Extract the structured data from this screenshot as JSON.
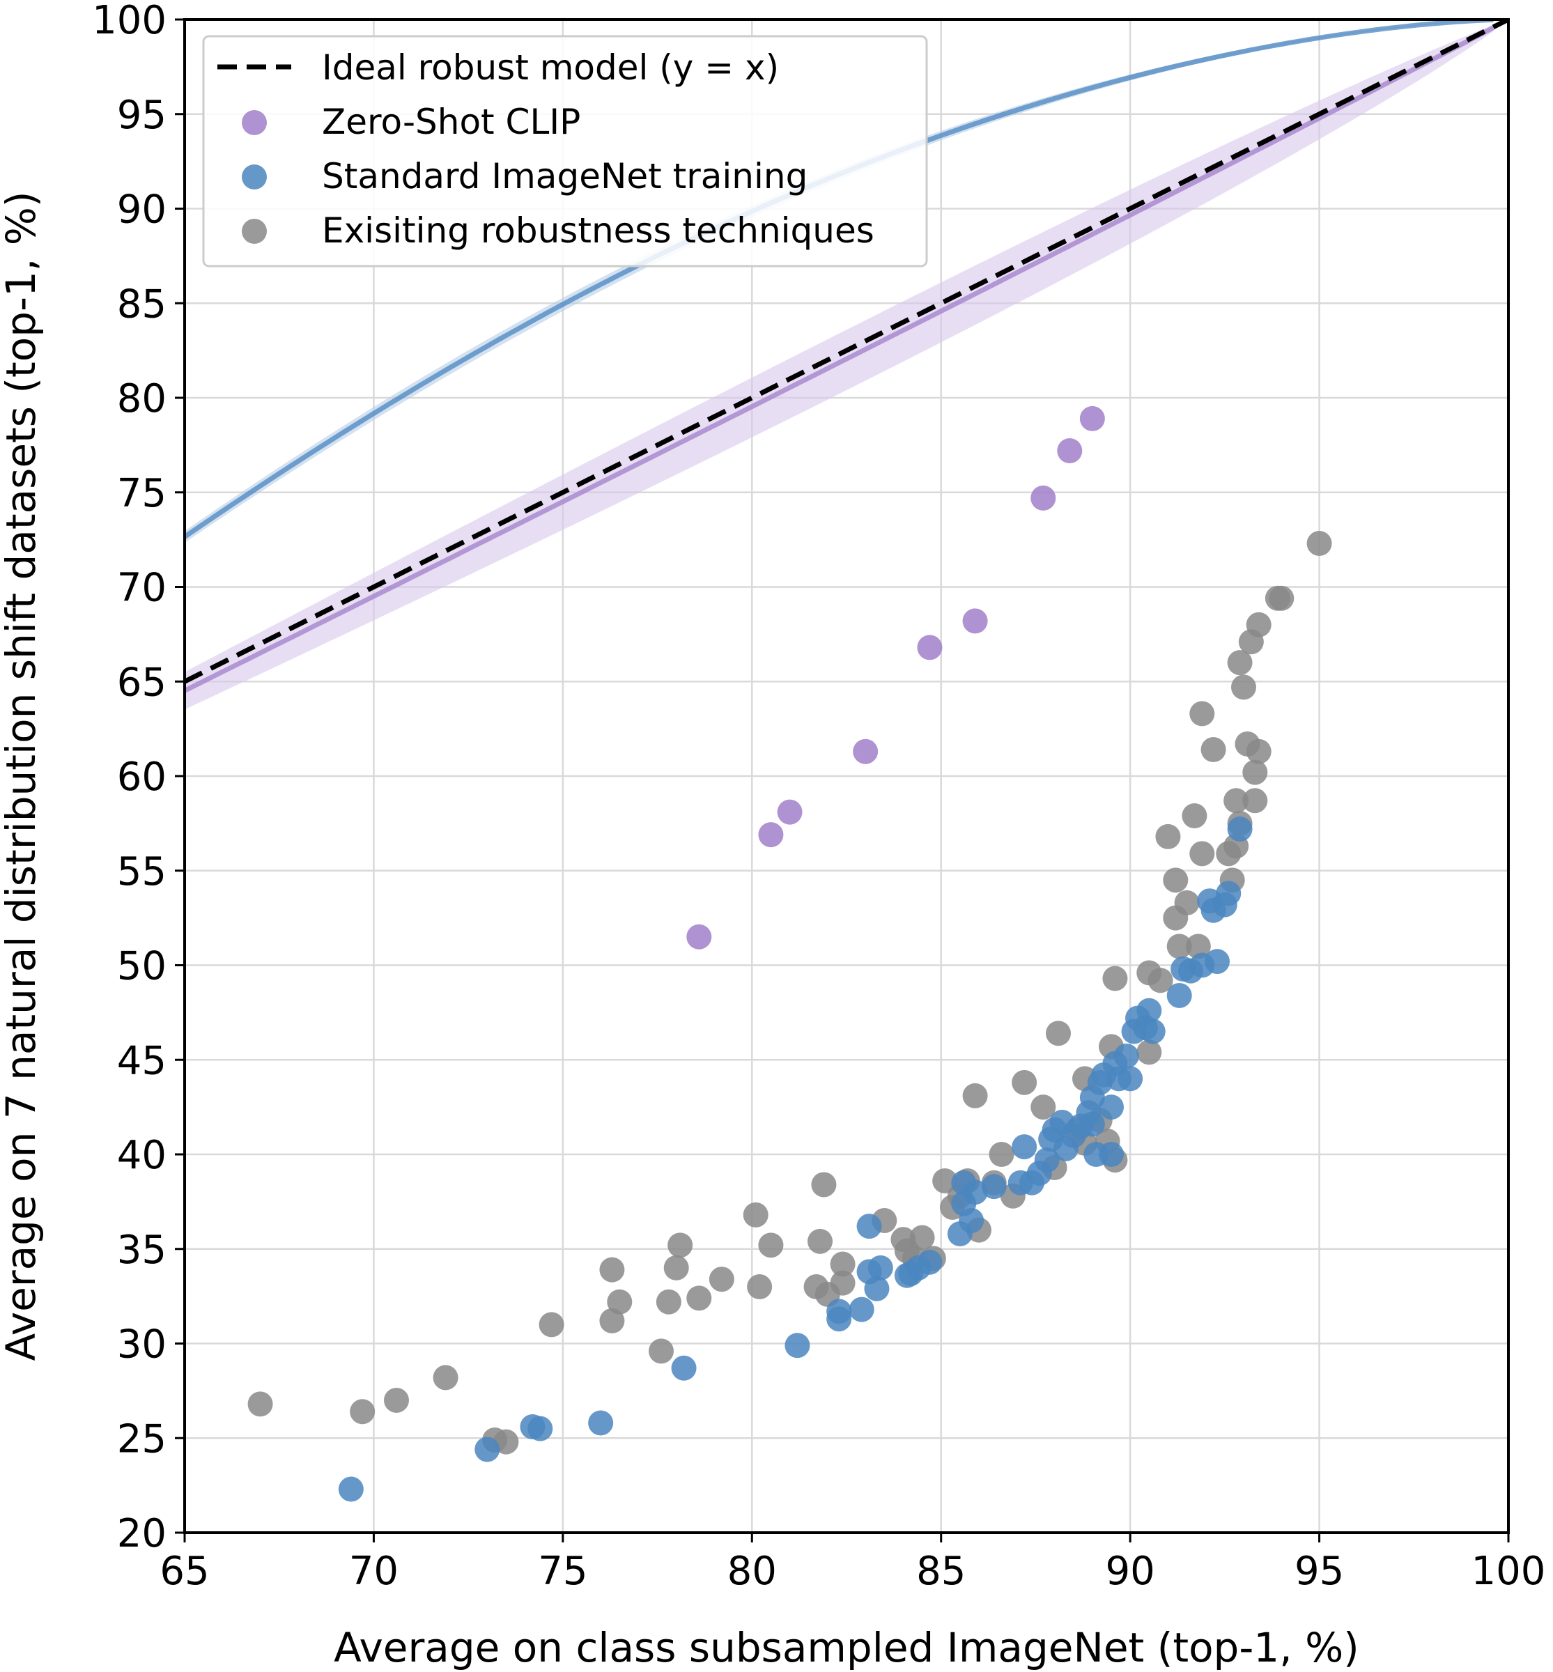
{
  "chart_data": {
    "type": "scatter",
    "xlabel": "Average on class subsampled ImageNet (top-1, %)",
    "ylabel": "Average on 7 natural distribution shift datasets (top-1, %)",
    "xlim": [
      65,
      100
    ],
    "ylim": [
      20,
      100
    ],
    "xticks": [
      "65",
      "70",
      "75",
      "80",
      "85",
      "90",
      "95",
      "100"
    ],
    "yticks": [
      "20",
      "25",
      "30",
      "35",
      "40",
      "45",
      "50",
      "55",
      "60",
      "65",
      "70",
      "75",
      "80",
      "85",
      "90",
      "95",
      "100"
    ],
    "grid": true,
    "legend_position": "upper-left",
    "colors": {
      "ideal": "#000000",
      "clip": "#a17fc9",
      "clip_band": "#d9c8ec",
      "standard": "#4a86c0",
      "standard_band": "#b5cde6",
      "robust": "#888888"
    },
    "legend": [
      {
        "label": "Ideal robust model (y = x)",
        "marker": "dashed-line",
        "color": "#000000"
      },
      {
        "label": "Zero-Shot CLIP",
        "marker": "dot",
        "color": "#a17fc9"
      },
      {
        "label": "Standard ImageNet training",
        "marker": "dot",
        "color": "#4a86c0"
      },
      {
        "label": "Exisiting robustness techniques",
        "marker": "dot",
        "color": "#888888"
      }
    ],
    "lines": [
      {
        "name": "Ideal robust model (y = x)",
        "x": [
          65,
          100
        ],
        "y": [
          65,
          100
        ],
        "style": "dashed"
      }
    ],
    "fits": [
      {
        "series": "Zero-Shot CLIP",
        "a": 0.99,
        "b": -0.015,
        "band_a": 0.07
      },
      {
        "series": "Standard ImageNet training",
        "a": 1.57,
        "b": 0.005,
        "band_a": 0.025
      }
    ],
    "series": [
      {
        "name": "Exisiting robustness techniques",
        "points": [
          [
            67.0,
            26.8
          ],
          [
            69.7,
            26.4
          ],
          [
            70.6,
            27.0
          ],
          [
            71.9,
            28.2
          ],
          [
            73.2,
            24.9
          ],
          [
            73.5,
            24.8
          ],
          [
            74.7,
            31.0
          ],
          [
            76.3,
            31.2
          ],
          [
            76.3,
            33.9
          ],
          [
            76.5,
            32.2
          ],
          [
            77.6,
            29.6
          ],
          [
            77.8,
            32.2
          ],
          [
            78.0,
            34.0
          ],
          [
            78.1,
            35.2
          ],
          [
            78.6,
            32.4
          ],
          [
            79.2,
            33.4
          ],
          [
            80.1,
            36.8
          ],
          [
            80.2,
            33.0
          ],
          [
            80.5,
            35.2
          ],
          [
            81.7,
            33.0
          ],
          [
            81.8,
            35.4
          ],
          [
            81.9,
            38.4
          ],
          [
            82.0,
            32.6
          ],
          [
            82.4,
            33.2
          ],
          [
            82.4,
            34.2
          ],
          [
            83.5,
            36.5
          ],
          [
            84.0,
            35.5
          ],
          [
            84.1,
            34.9
          ],
          [
            84.3,
            34.5
          ],
          [
            84.5,
            35.6
          ],
          [
            84.8,
            34.5
          ],
          [
            85.1,
            38.6
          ],
          [
            85.3,
            37.2
          ],
          [
            85.5,
            37.8
          ],
          [
            85.7,
            38.6
          ],
          [
            85.9,
            43.1
          ],
          [
            86.0,
            36.0
          ],
          [
            86.4,
            38.5
          ],
          [
            86.6,
            40.0
          ],
          [
            86.9,
            37.8
          ],
          [
            87.2,
            43.8
          ],
          [
            87.7,
            42.5
          ],
          [
            88.0,
            39.3
          ],
          [
            88.1,
            46.4
          ],
          [
            88.6,
            41.3
          ],
          [
            88.8,
            40.6
          ],
          [
            88.8,
            44.0
          ],
          [
            89.2,
            41.8
          ],
          [
            89.4,
            40.7
          ],
          [
            89.5,
            45.7
          ],
          [
            89.6,
            39.7
          ],
          [
            89.6,
            49.3
          ],
          [
            90.5,
            45.4
          ],
          [
            90.5,
            49.6
          ],
          [
            90.8,
            49.2
          ],
          [
            91.0,
            56.8
          ],
          [
            91.2,
            54.5
          ],
          [
            91.2,
            52.5
          ],
          [
            91.3,
            51.0
          ],
          [
            91.5,
            53.3
          ],
          [
            91.7,
            57.9
          ],
          [
            91.8,
            51.0
          ],
          [
            91.9,
            55.9
          ],
          [
            91.9,
            63.3
          ],
          [
            92.2,
            61.4
          ],
          [
            92.6,
            55.9
          ],
          [
            92.7,
            54.5
          ],
          [
            92.8,
            56.3
          ],
          [
            92.8,
            58.7
          ],
          [
            92.9,
            57.5
          ],
          [
            92.9,
            66.0
          ],
          [
            93.0,
            64.7
          ],
          [
            93.1,
            61.7
          ],
          [
            93.2,
            67.1
          ],
          [
            93.3,
            60.2
          ],
          [
            93.3,
            58.7
          ],
          [
            93.4,
            61.3
          ],
          [
            93.4,
            68.0
          ],
          [
            93.9,
            69.4
          ],
          [
            94.0,
            69.4
          ],
          [
            95.0,
            72.3
          ]
        ]
      },
      {
        "name": "Standard ImageNet training",
        "points": [
          [
            69.4,
            22.3
          ],
          [
            73.0,
            24.4
          ],
          [
            74.2,
            25.6
          ],
          [
            74.4,
            25.5
          ],
          [
            76.0,
            25.8
          ],
          [
            78.2,
            28.7
          ],
          [
            81.2,
            29.9
          ],
          [
            82.3,
            31.3
          ],
          [
            82.3,
            31.7
          ],
          [
            82.9,
            31.8
          ],
          [
            83.1,
            33.8
          ],
          [
            83.1,
            36.2
          ],
          [
            83.3,
            32.9
          ],
          [
            83.4,
            34.0
          ],
          [
            84.1,
            33.6
          ],
          [
            84.2,
            33.7
          ],
          [
            84.4,
            34.0
          ],
          [
            84.7,
            34.3
          ],
          [
            85.5,
            35.8
          ],
          [
            85.6,
            37.4
          ],
          [
            85.6,
            38.5
          ],
          [
            85.8,
            36.5
          ],
          [
            85.9,
            38.0
          ],
          [
            86.4,
            38.3
          ],
          [
            87.1,
            38.5
          ],
          [
            87.2,
            40.4
          ],
          [
            87.4,
            38.5
          ],
          [
            87.6,
            39.0
          ],
          [
            87.8,
            39.7
          ],
          [
            87.9,
            40.8
          ],
          [
            88.0,
            41.3
          ],
          [
            88.2,
            41.7
          ],
          [
            88.3,
            40.3
          ],
          [
            88.5,
            41.0
          ],
          [
            88.7,
            41.5
          ],
          [
            88.9,
            42.2
          ],
          [
            89.0,
            41.6
          ],
          [
            89.0,
            43.0
          ],
          [
            89.1,
            40.0
          ],
          [
            89.2,
            43.8
          ],
          [
            89.3,
            44.2
          ],
          [
            89.5,
            40.0
          ],
          [
            89.5,
            42.5
          ],
          [
            89.6,
            44.8
          ],
          [
            89.7,
            44.0
          ],
          [
            89.9,
            45.2
          ],
          [
            90.0,
            44.0
          ],
          [
            90.1,
            46.5
          ],
          [
            90.2,
            47.2
          ],
          [
            90.4,
            46.7
          ],
          [
            90.5,
            47.6
          ],
          [
            90.6,
            46.5
          ],
          [
            91.3,
            48.4
          ],
          [
            91.4,
            49.8
          ],
          [
            91.6,
            49.7
          ],
          [
            91.9,
            50.0
          ],
          [
            92.1,
            53.4
          ],
          [
            92.2,
            52.9
          ],
          [
            92.3,
            50.2
          ],
          [
            92.5,
            53.2
          ],
          [
            92.6,
            53.8
          ],
          [
            92.9,
            57.2
          ]
        ]
      },
      {
        "name": "Zero-Shot CLIP",
        "points": [
          [
            78.6,
            51.5
          ],
          [
            80.5,
            56.9
          ],
          [
            81.0,
            58.1
          ],
          [
            83.0,
            61.3
          ],
          [
            84.7,
            66.8
          ],
          [
            85.9,
            68.2
          ],
          [
            87.7,
            74.7
          ],
          [
            88.4,
            77.2
          ],
          [
            89.0,
            78.9
          ]
        ]
      }
    ]
  }
}
